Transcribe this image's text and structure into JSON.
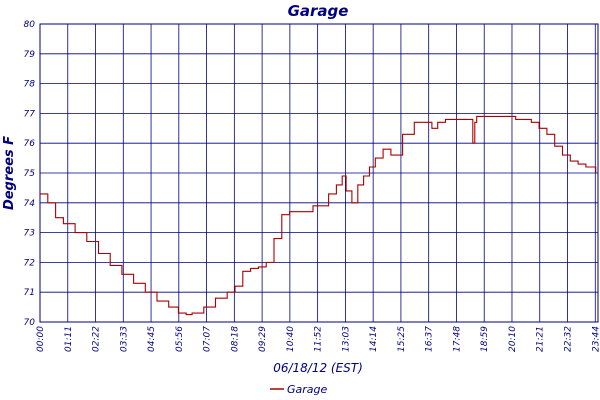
{
  "chart_data": {
    "type": "line",
    "title": "Garage",
    "xlabel": "06/18/12 (EST)",
    "ylabel": "Degrees F",
    "ylim": [
      70,
      80
    ],
    "yticks": [
      70,
      71,
      72,
      73,
      74,
      75,
      76,
      77,
      78,
      79,
      80
    ],
    "xticks": [
      "00:00",
      "01:11",
      "02:22",
      "03:33",
      "04:45",
      "05:56",
      "07:07",
      "08:18",
      "09:29",
      "10:40",
      "11:52",
      "13:03",
      "14:14",
      "15:25",
      "16:37",
      "17:48",
      "18:59",
      "20:10",
      "21:21",
      "22:32",
      "23:44"
    ],
    "grid": true,
    "legend": "bottom-center",
    "series": [
      {
        "name": "Garage",
        "color": "#aa0000",
        "x_minutes": [
          0,
          20,
          40,
          60,
          90,
          120,
          150,
          180,
          210,
          240,
          270,
          300,
          330,
          355,
          375,
          390,
          420,
          450,
          480,
          500,
          520,
          540,
          560,
          580,
          600,
          620,
          640,
          660,
          700,
          740,
          760,
          775,
          785,
          800,
          815,
          830,
          845,
          860,
          880,
          900,
          930,
          960,
          990,
          1005,
          1020,
          1040,
          1060,
          1080,
          1100,
          1110,
          1115,
          1120,
          1140,
          1160,
          1180,
          1200,
          1220,
          1240,
          1260,
          1280,
          1300,
          1320,
          1340,
          1360,
          1380,
          1400,
          1425
        ],
        "values": [
          74.3,
          74.0,
          73.5,
          73.3,
          73.0,
          72.7,
          72.3,
          71.9,
          71.6,
          71.3,
          71.0,
          70.7,
          70.5,
          70.3,
          70.25,
          70.3,
          70.5,
          70.8,
          71.0,
          71.2,
          71.7,
          71.8,
          71.85,
          72.0,
          72.8,
          73.6,
          73.7,
          73.7,
          73.9,
          74.3,
          74.6,
          74.9,
          74.4,
          74.0,
          74.6,
          74.9,
          75.2,
          75.5,
          75.8,
          75.6,
          76.3,
          76.7,
          76.7,
          76.5,
          76.7,
          76.8,
          76.8,
          76.8,
          76.8,
          76.0,
          76.7,
          76.9,
          76.9,
          76.9,
          76.9,
          76.9,
          76.8,
          76.8,
          76.7,
          76.5,
          76.3,
          75.9,
          75.6,
          75.4,
          75.3,
          75.2,
          75.0
        ]
      }
    ]
  }
}
